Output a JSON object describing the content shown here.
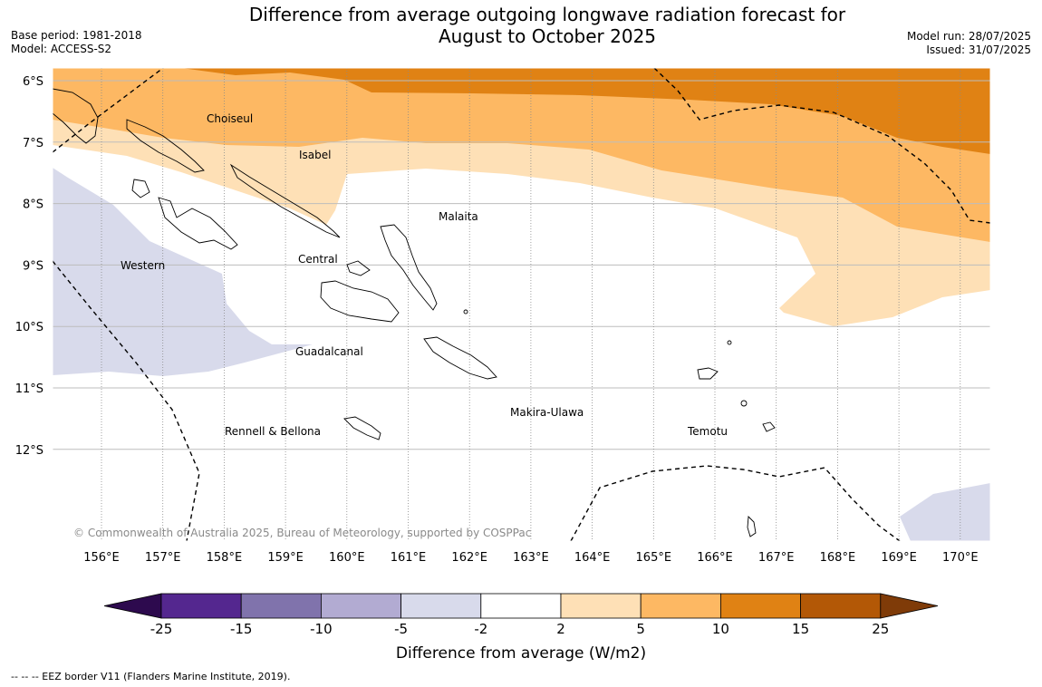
{
  "title_line1": "Difference from average outgoing longwave radiation forecast for",
  "title_line2": "August to October 2025",
  "base_period": "Base period: 1981-2018",
  "model": "Model: ACCESS-S2",
  "model_run": "Model run: 28/07/2025",
  "issued": "Issued: 31/07/2025",
  "copyright": "© Commonwealth of Australia 2025, Bureau of Meteorology, supported by COSPPac",
  "footnote": "--  --  -- EEZ border V11 (Flanders Marine Institute, 2019).",
  "map": {
    "lat_labels": [
      "6°S",
      "7°S",
      "8°S",
      "9°S",
      "10°S",
      "11°S",
      "12°S"
    ],
    "lon_labels": [
      "156°E",
      "157°E",
      "158°E",
      "159°E",
      "160°E",
      "161°E",
      "162°E",
      "163°E",
      "164°E",
      "165°E",
      "166°E",
      "167°E",
      "168°E",
      "169°E",
      "170°E"
    ],
    "regions": [
      "Choiseul",
      "Isabel",
      "Malaita",
      "Central",
      "Western",
      "Guadalcanal",
      "Makira-Ulawa",
      "Rennell & Bellona",
      "Temotu"
    ]
  },
  "colorbar": {
    "label": "Difference from average (W/m2)",
    "ticks": [
      "-25",
      "-15",
      "-10",
      "-5",
      "-2",
      "2",
      "5",
      "10",
      "15",
      "25"
    ],
    "colors": [
      "#2d0a4e",
      "#54278f",
      "#8073ac",
      "#b2abd2",
      "#d8daeb",
      "#ffffff",
      "#fee0b6",
      "#fdb863",
      "#e08214",
      "#b35806",
      "#7f3b08"
    ]
  }
}
